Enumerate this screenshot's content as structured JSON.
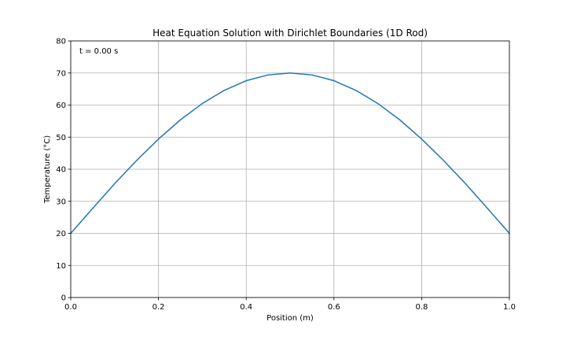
{
  "chart_data": {
    "type": "line",
    "title": "Heat Equation Solution with Dirichlet Boundaries (1D Rod)",
    "xlabel": "Position (m)",
    "ylabel": "Temperature (°C)",
    "xlim": [
      0,
      1
    ],
    "ylim": [
      0,
      80
    ],
    "xticks": [
      0,
      0.2,
      0.4,
      0.6,
      0.8,
      1.0
    ],
    "xtick_labels": [
      "0.0",
      "0.2",
      "0.4",
      "0.6",
      "0.8",
      "1.0"
    ],
    "yticks": [
      0,
      10,
      20,
      30,
      40,
      50,
      60,
      70,
      80
    ],
    "ytick_labels": [
      "0",
      "10",
      "20",
      "30",
      "40",
      "50",
      "60",
      "70",
      "80"
    ],
    "grid": true,
    "annotation": "t = 0.00 s",
    "series": [
      {
        "color": "#1f77b4",
        "x": [
          0.0,
          0.05,
          0.1,
          0.15,
          0.2,
          0.25,
          0.3,
          0.35,
          0.4,
          0.45,
          0.5,
          0.55,
          0.6,
          0.65,
          0.7,
          0.75,
          0.8,
          0.85,
          0.9,
          0.95,
          1.0
        ],
        "y": [
          20.0,
          27.8,
          35.5,
          42.7,
          49.4,
          55.4,
          60.5,
          64.6,
          67.6,
          69.4,
          70.0,
          69.4,
          67.6,
          64.6,
          60.5,
          55.4,
          49.4,
          42.7,
          35.5,
          27.8,
          20.0
        ]
      }
    ]
  }
}
